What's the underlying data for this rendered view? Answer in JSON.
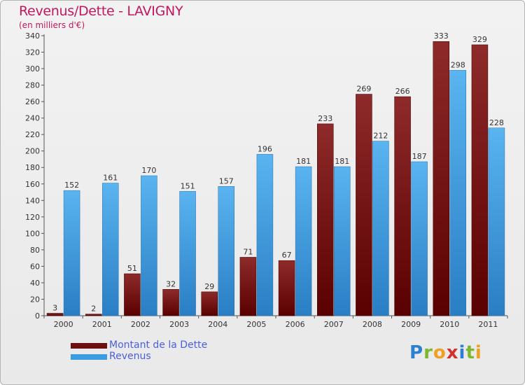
{
  "header": {
    "title": "Revenus/Dette - LAVIGNY",
    "subtitle": "(en milliers d'€)"
  },
  "colors": {
    "title": "#c2185b",
    "dette": "#7a1515",
    "revenus": "#4aa6e8",
    "legend_text": "#4a5fe0"
  },
  "legend": {
    "items": [
      {
        "label": "Montant de la Dette",
        "color": "#6b0f0f"
      },
      {
        "label": "Revenus",
        "color": "#3d9be0"
      }
    ]
  },
  "logo": {
    "text": "Proxiti"
  },
  "chart_data": {
    "type": "bar",
    "categories": [
      "2000",
      "2001",
      "2002",
      "2003",
      "2004",
      "2005",
      "2006",
      "2007",
      "2008",
      "2009",
      "2010",
      "2011"
    ],
    "series": [
      {
        "name": "Montant de la Dette",
        "values": [
          3,
          2,
          51,
          32,
          29,
          71,
          67,
          233,
          269,
          266,
          333,
          329
        ]
      },
      {
        "name": "Revenus",
        "values": [
          152,
          161,
          170,
          151,
          157,
          196,
          181,
          181,
          212,
          187,
          298,
          228
        ]
      }
    ],
    "yticks": [
      0,
      20,
      40,
      60,
      80,
      100,
      120,
      140,
      160,
      180,
      200,
      220,
      240,
      260,
      280,
      300,
      320,
      340
    ],
    "ylim": [
      0,
      340
    ],
    "grid": false,
    "legend_position": "bottom-left"
  }
}
